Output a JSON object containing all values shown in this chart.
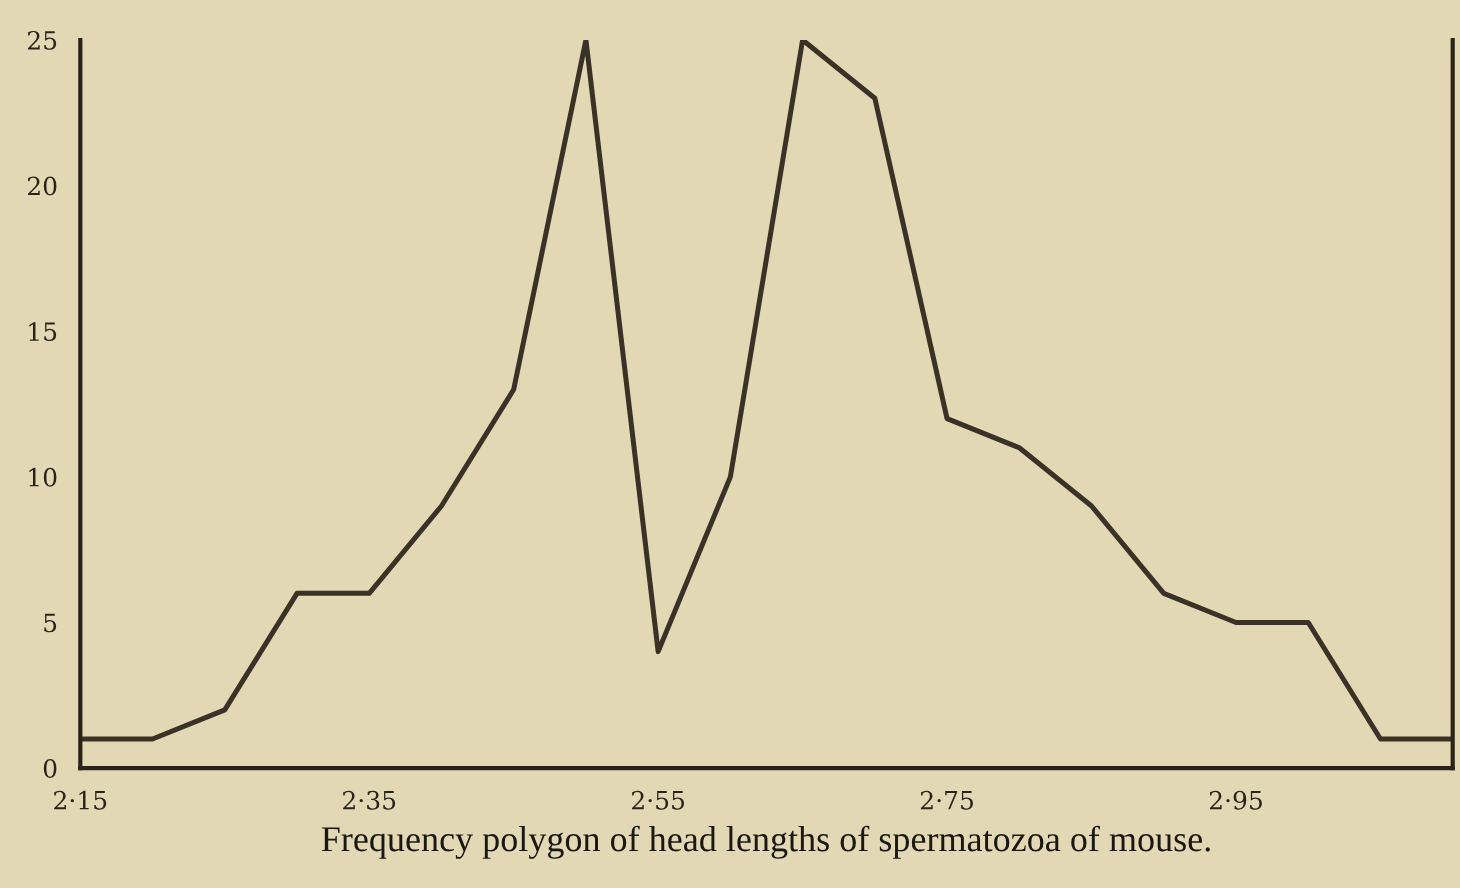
{
  "chart_data": {
    "type": "line",
    "xlabel": "Frequency polygon of head lengths of spermatozoa of mouse.",
    "categories": [
      "2·15",
      null,
      null,
      null,
      "2·35",
      null,
      null,
      null,
      "2·55",
      null,
      null,
      null,
      "2·75",
      null,
      null,
      null,
      "2·95",
      null,
      null,
      null
    ],
    "series": [
      {
        "color": "#3a3226",
        "values": [
          1,
          1,
          2,
          6,
          6,
          9,
          13,
          25,
          4,
          10,
          25,
          23,
          12,
          11,
          9,
          6,
          5,
          5,
          1,
          1
        ]
      }
    ],
    "ylim": [
      0,
      25
    ],
    "yticks": [
      0,
      5,
      10,
      15,
      20,
      25
    ],
    "grid": false,
    "legend": false,
    "marker": "none",
    "line_style": "solid"
  }
}
